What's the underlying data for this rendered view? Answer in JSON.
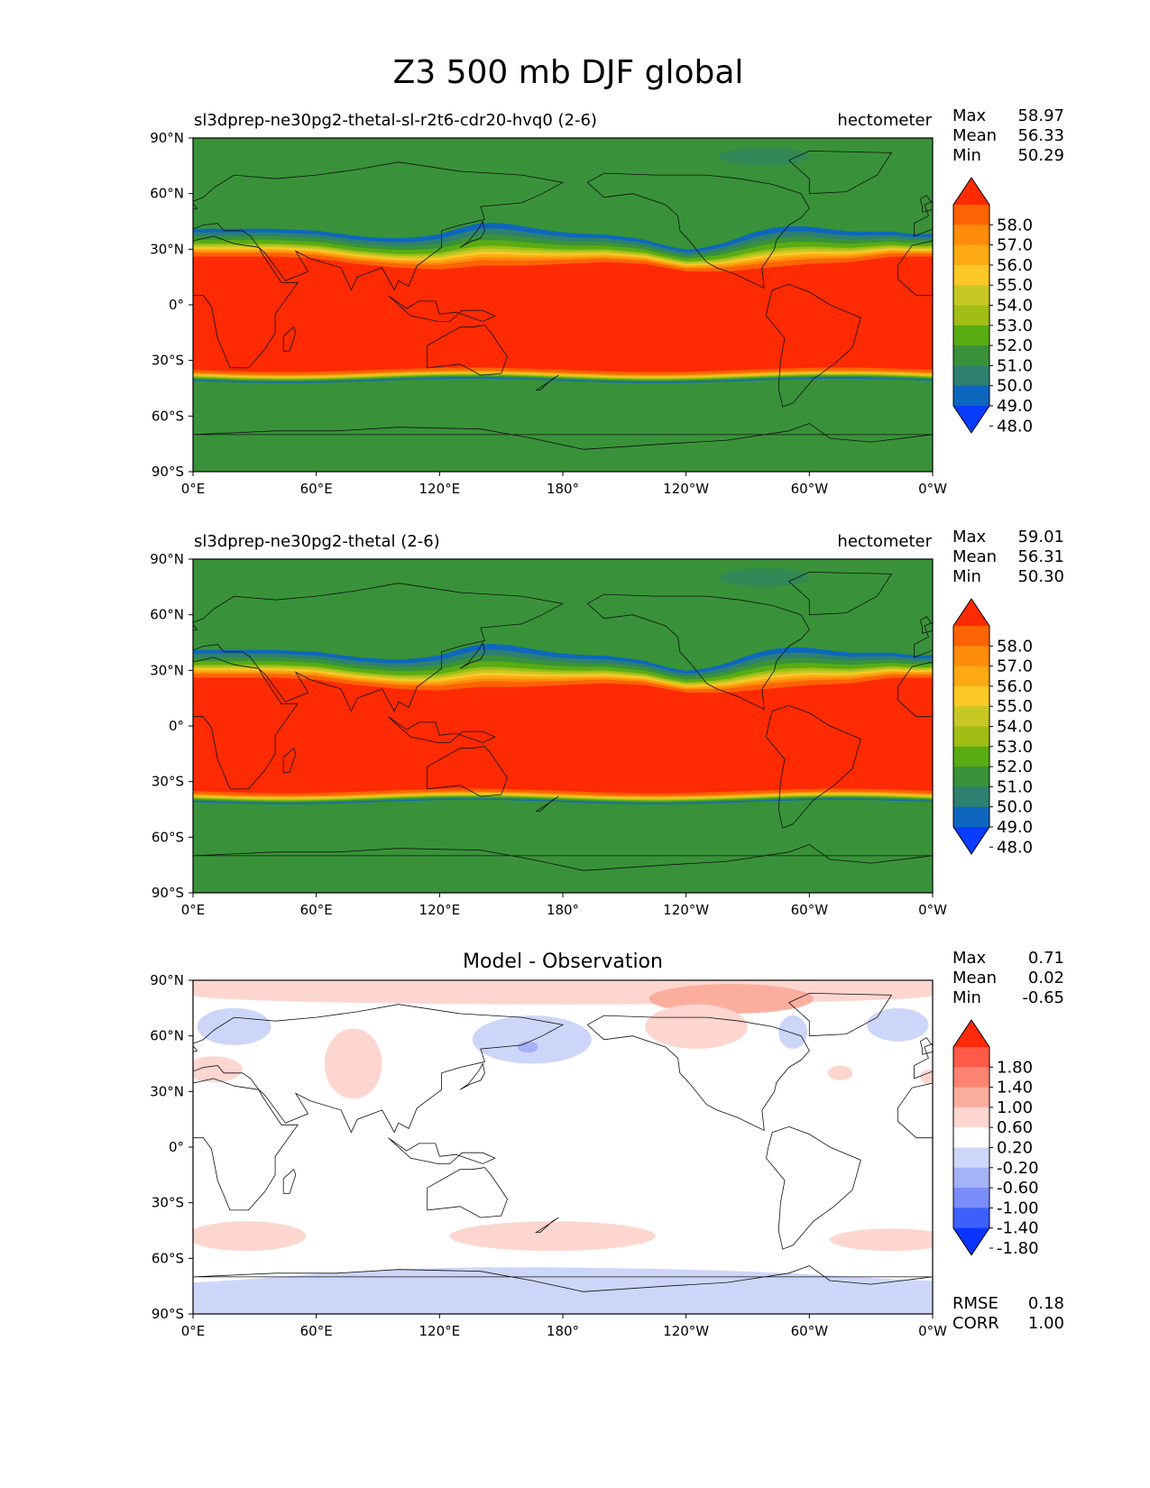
{
  "figure": {
    "title": "Z3 500 mb DJF global"
  },
  "chart_data": [
    {
      "type": "heatmap",
      "left_title": "sl3dprep-ne30pg2-thetal-sl-r2t6-cdr20-hvq0 (2-6)",
      "units": "hectometer",
      "stats": {
        "max_label": "Max",
        "mean_label": "Mean",
        "min_label": "Min",
        "max": "58.97",
        "mean": "56.33",
        "min": "50.29"
      },
      "colorbar": {
        "labels": [
          "58.0",
          "57.0",
          "56.0",
          "55.0",
          "54.0",
          "53.0",
          "52.0",
          "51.0",
          "50.0",
          "49.0",
          "48.0"
        ],
        "colors": [
          "#fe2a02",
          "#fd6302",
          "#fd8c0b",
          "#fca914",
          "#fbc827",
          "#c8c825",
          "#a0be15",
          "#5aac13",
          "#399239",
          "#2e8070",
          "#0d67be",
          "#0a3cff"
        ]
      },
      "xticks": [
        "0°E",
        "60°E",
        "120°E",
        "180°",
        "120°W",
        "60°W",
        "0°W"
      ],
      "yticks": [
        "90°N",
        "60°N",
        "30°N",
        "0°",
        "30°S",
        "60°S",
        "90°S"
      ],
      "lat_range": [
        -90,
        90
      ],
      "lon_range": [
        0,
        360
      ],
      "n_lim_base": [
        26,
        26,
        26,
        25,
        22,
        20,
        19,
        21,
        21,
        22,
        23,
        22,
        18,
        18,
        20,
        22,
        23,
        26,
        26
      ],
      "s_lim": -35,
      "bands_nh": [
        2,
        3,
        4,
        5,
        6,
        7,
        9,
        11,
        13,
        15
      ],
      "bands_sh": [
        1.5,
        2,
        2.5,
        3,
        3.5,
        4,
        4.5,
        5,
        5.5,
        6
      ]
    },
    {
      "type": "heatmap",
      "left_title": "sl3dprep-ne30pg2-thetal (2-6)",
      "units": "hectometer",
      "stats": {
        "max_label": "Max",
        "mean_label": "Mean",
        "min_label": "Min",
        "max": "59.01",
        "mean": "56.31",
        "min": "50.30"
      },
      "colorbar": {
        "labels": [
          "58.0",
          "57.0",
          "56.0",
          "55.0",
          "54.0",
          "53.0",
          "52.0",
          "51.0",
          "50.0",
          "49.0",
          "48.0"
        ],
        "colors": [
          "#fe2a02",
          "#fd6302",
          "#fd8c0b",
          "#fca914",
          "#fbc827",
          "#c8c825",
          "#a0be15",
          "#5aac13",
          "#399239",
          "#2e8070",
          "#0d67be",
          "#0a3cff"
        ]
      },
      "xticks": [
        "0°E",
        "60°E",
        "120°E",
        "180°",
        "120°W",
        "60°W",
        "0°W"
      ],
      "yticks": [
        "90°N",
        "60°N",
        "30°N",
        "0°",
        "30°S",
        "60°S",
        "90°S"
      ],
      "lat_range": [
        -90,
        90
      ],
      "lon_range": [
        0,
        360
      ],
      "n_lim_base": [
        26,
        26,
        26,
        25,
        22,
        20,
        19,
        21,
        21,
        22,
        23,
        22,
        18,
        18,
        20,
        22,
        23,
        26,
        26
      ],
      "s_lim": -35,
      "bands_nh": [
        2,
        3,
        4,
        5,
        6,
        7,
        9,
        11,
        13,
        15
      ],
      "bands_sh": [
        1.5,
        2,
        2.5,
        3,
        3.5,
        4,
        4.5,
        5,
        5.5,
        6
      ]
    },
    {
      "type": "heatmap",
      "title": "Model - Observation",
      "stats": {
        "max_label": "Max",
        "mean_label": "Mean",
        "min_label": "Min",
        "max": "0.71",
        "mean": "0.02",
        "min": "-0.65"
      },
      "colorbar": {
        "labels": [
          "1.80",
          "1.40",
          "1.00",
          "0.60",
          "0.20",
          "-0.20",
          "-0.60",
          "-1.00",
          "-1.40",
          "-1.80"
        ],
        "colors": [
          "#ff2a0a",
          "#fd5a47",
          "#fc8470",
          "#fcae9e",
          "#fdd6d0",
          "#ffffff",
          "#cdd6f9",
          "#a5b2f7",
          "#7a8cf9",
          "#3d5ffb",
          "#0a35ff"
        ]
      },
      "metrics": {
        "rmse_label": "RMSE",
        "rmse": "0.18",
        "corr_label": "CORR",
        "corr": "1.00"
      },
      "xticks": [
        "0°E",
        "60°E",
        "120°E",
        "180°",
        "120°W",
        "60°W",
        "0°W"
      ],
      "yticks": [
        "90°N",
        "60°N",
        "30°N",
        "0°",
        "30°S",
        "60°S",
        "90°S"
      ],
      "lat_range": [
        -90,
        90
      ],
      "lon_range": [
        0,
        360
      ],
      "anomalies": [
        {
          "lon": 180,
          "lat": 82,
          "rlon": 180,
          "rlat": 5,
          "sign": 1,
          "level": 1
        },
        {
          "lon": 262,
          "lat": 80,
          "rlon": 40,
          "rlat": 8,
          "sign": 1,
          "level": 2
        },
        {
          "lon": 245,
          "lat": 65,
          "rlon": 25,
          "rlat": 12,
          "sign": 1,
          "level": 1
        },
        {
          "lon": 20,
          "lat": 65,
          "rlon": 18,
          "rlat": 10,
          "sign": -1,
          "level": 1
        },
        {
          "lon": 78,
          "lat": 45,
          "rlon": 14,
          "rlat": 19,
          "sign": 1,
          "level": 1
        },
        {
          "lon": 10,
          "lat": 42,
          "rlon": 14,
          "rlat": 7,
          "sign": 1,
          "level": 1
        },
        {
          "lon": 165,
          "lat": 58,
          "rlon": 29,
          "rlat": 13,
          "sign": -1,
          "level": 1
        },
        {
          "lon": 163,
          "lat": 54,
          "rlon": 5,
          "rlat": 3,
          "sign": -1,
          "level": 2
        },
        {
          "lon": 292,
          "lat": 62,
          "rlon": 7,
          "rlat": 9,
          "sign": -1,
          "level": 1
        },
        {
          "lon": 343,
          "lat": 66,
          "rlon": 15,
          "rlat": 9,
          "sign": -1,
          "level": 1
        },
        {
          "lon": 315,
          "lat": 40,
          "rlon": 6,
          "rlat": 4,
          "sign": 1,
          "level": 1
        },
        {
          "lon": 358,
          "lat": 38,
          "rlon": 4,
          "rlat": 4,
          "sign": 1,
          "level": 1
        },
        {
          "lon": 26,
          "lat": -48,
          "rlon": 29,
          "rlat": 8,
          "sign": 1,
          "level": 1
        },
        {
          "lon": 175,
          "lat": -48,
          "rlon": 50,
          "rlat": 8,
          "sign": 1,
          "level": 1
        },
        {
          "lon": 340,
          "lat": -50,
          "rlon": 30,
          "rlat": 6,
          "sign": 1,
          "level": 1
        }
      ]
    }
  ]
}
